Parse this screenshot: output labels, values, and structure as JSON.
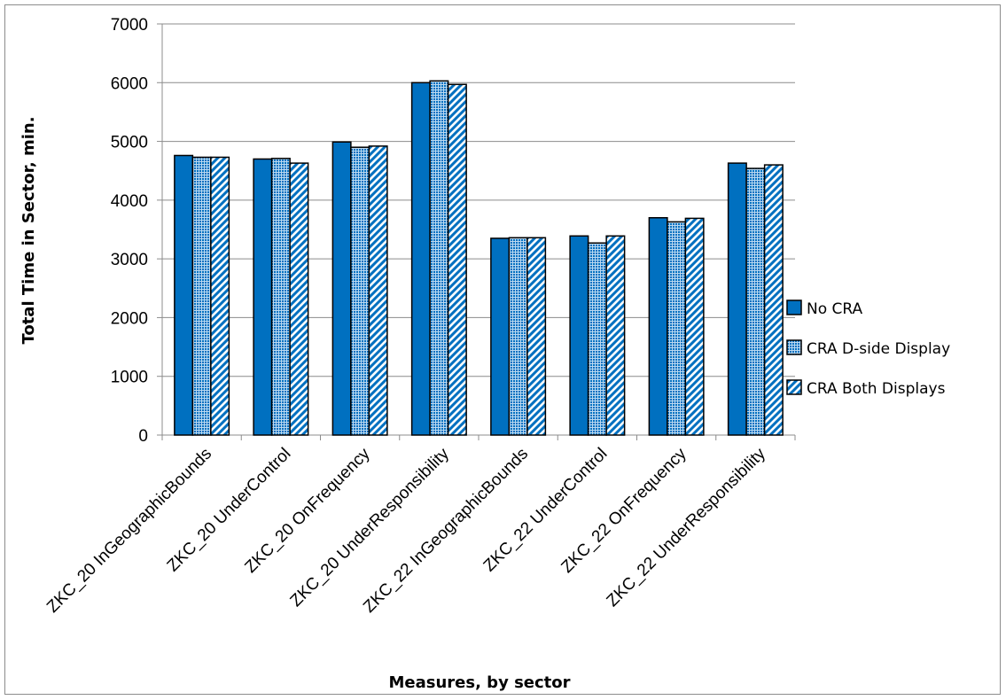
{
  "chart_data": {
    "type": "bar",
    "title": "",
    "xlabel": "Measures, by sector",
    "ylabel": "Total Time in Sector, min.",
    "ylim": [
      0,
      7000
    ],
    "yticks": [
      0,
      1000,
      2000,
      3000,
      4000,
      5000,
      6000,
      7000
    ],
    "grid": true,
    "legend_position": "right",
    "categories": [
      "ZKC_20 InGeographicBounds",
      "ZKC_20 UnderControl",
      "ZKC_20 OnFrequency",
      "ZKC_20 UnderResponsibility",
      "ZKC_22 InGeographicBounds",
      "ZKC_22 UnderControl",
      "ZKC_22 OnFrequency",
      "ZKC_22 UnderResponsibility"
    ],
    "series": [
      {
        "name": "No CRA",
        "color": "#0070c0",
        "pattern": "solid",
        "values": [
          4760,
          4700,
          4990,
          6000,
          3350,
          3390,
          3700,
          4630
        ]
      },
      {
        "name": "CRA D-side Display",
        "color": "#0070c0",
        "pattern": "dotted",
        "values": [
          4730,
          4710,
          4900,
          6030,
          3360,
          3270,
          3630,
          4540
        ]
      },
      {
        "name": "CRA Both Displays",
        "color": "#0070c0",
        "pattern": "hatched",
        "values": [
          4730,
          4630,
          4920,
          5970,
          3360,
          3390,
          3690,
          4600
        ]
      }
    ]
  }
}
